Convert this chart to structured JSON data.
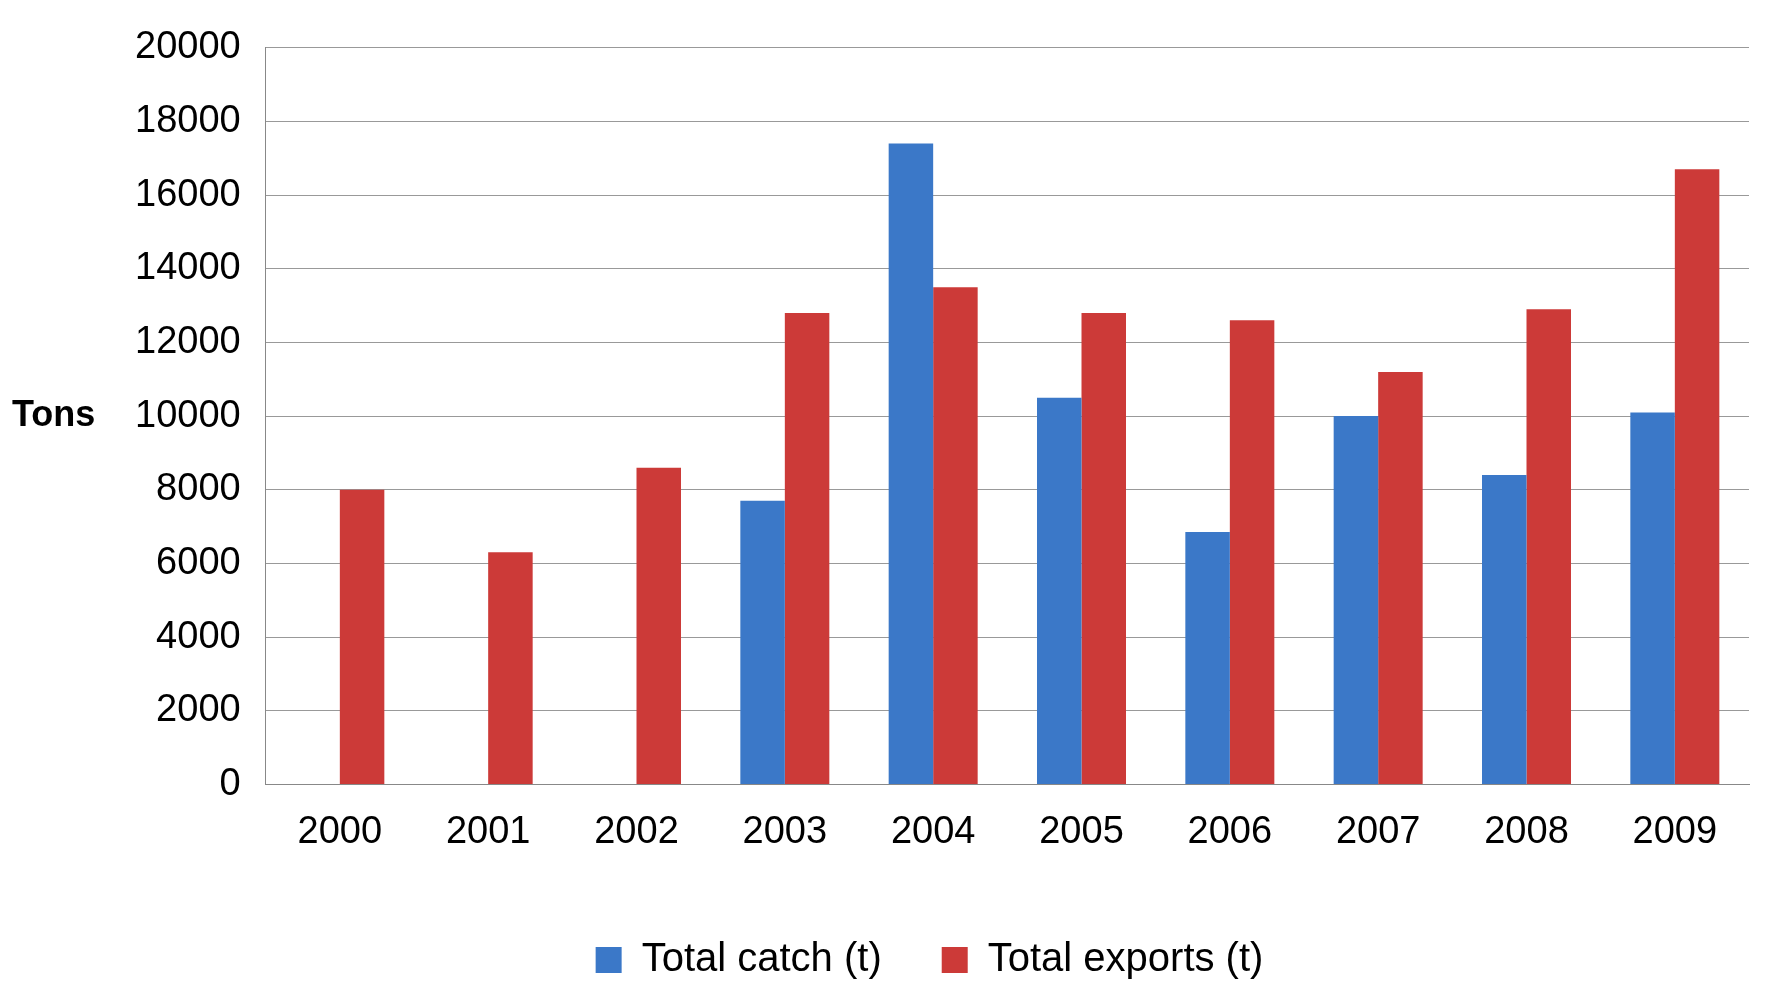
{
  "chart_data": {
    "type": "bar",
    "ylabel": "Tons",
    "categories": [
      "2000",
      "2001",
      "2002",
      "2003",
      "2004",
      "2005",
      "2006",
      "2007",
      "2008",
      "2009"
    ],
    "series": [
      {
        "name": "Total catch (t)",
        "color": "#3b78c8",
        "values": [
          null,
          null,
          null,
          7700,
          17400,
          10500,
          6850,
          10000,
          8400,
          10100
        ]
      },
      {
        "name": "Total exports (t)",
        "color": "#cc3a38",
        "values": [
          8000,
          6300,
          8600,
          12800,
          13500,
          12800,
          12600,
          11200,
          12900,
          16700
        ]
      }
    ],
    "ylim": [
      0,
      20000
    ],
    "yticks": [
      0,
      2000,
      4000,
      6000,
      8000,
      10000,
      12000,
      14000,
      16000,
      18000,
      20000
    ],
    "grid": "y",
    "legend": "bottom"
  }
}
